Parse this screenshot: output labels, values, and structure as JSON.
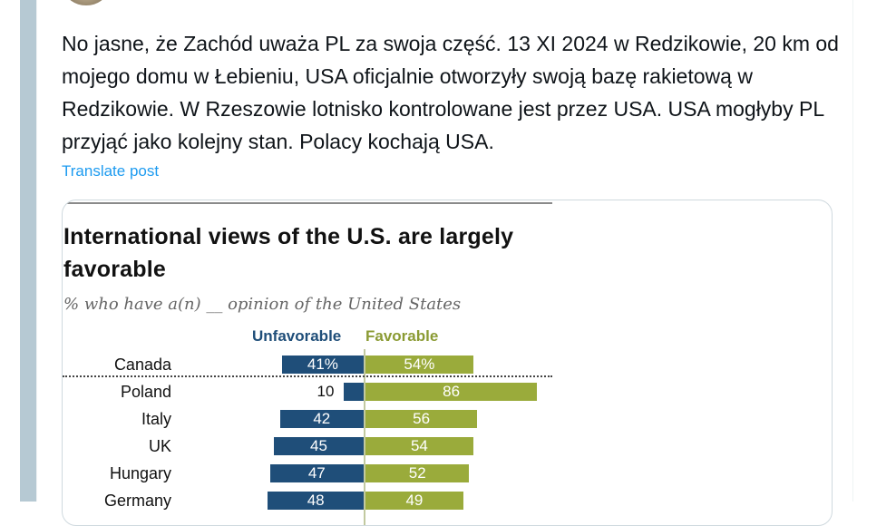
{
  "post": {
    "text": "No jasne, że Zachód uważa PL za swoja część. 13 XI 2024 w Redzikowie, 20 km od mojego domu w Łebieniu, USA oficjalnie otworzyły swoją bazę rakietową w Redzikowie. W Rzeszowie lotnisko kontrolowane jest przez USA. USA mogłyby PL przyjąć jako kolejny stan. Polacy kochają USA.",
    "translate_label": "Translate post"
  },
  "chart_data": {
    "type": "bar",
    "title": "International views of the U.S. are largely favorable",
    "subtitle": "% who have a(n) __ opinion of the United States",
    "categories": [
      "Canada",
      "Poland",
      "Italy",
      "UK",
      "Hungary",
      "Germany"
    ],
    "series": [
      {
        "name": "Unfavorable",
        "values": [
          41,
          10,
          42,
          45,
          47,
          48
        ],
        "labels": [
          "41%",
          "10",
          "42",
          "45",
          "47",
          "48"
        ]
      },
      {
        "name": "Favorable",
        "values": [
          54,
          86,
          56,
          54,
          52,
          49
        ],
        "labels": [
          "54%",
          "86",
          "56",
          "54",
          "52",
          "49"
        ]
      }
    ],
    "colors": {
      "unfavorable": "#1f4e79",
      "favorable": "#9aab3b"
    }
  }
}
